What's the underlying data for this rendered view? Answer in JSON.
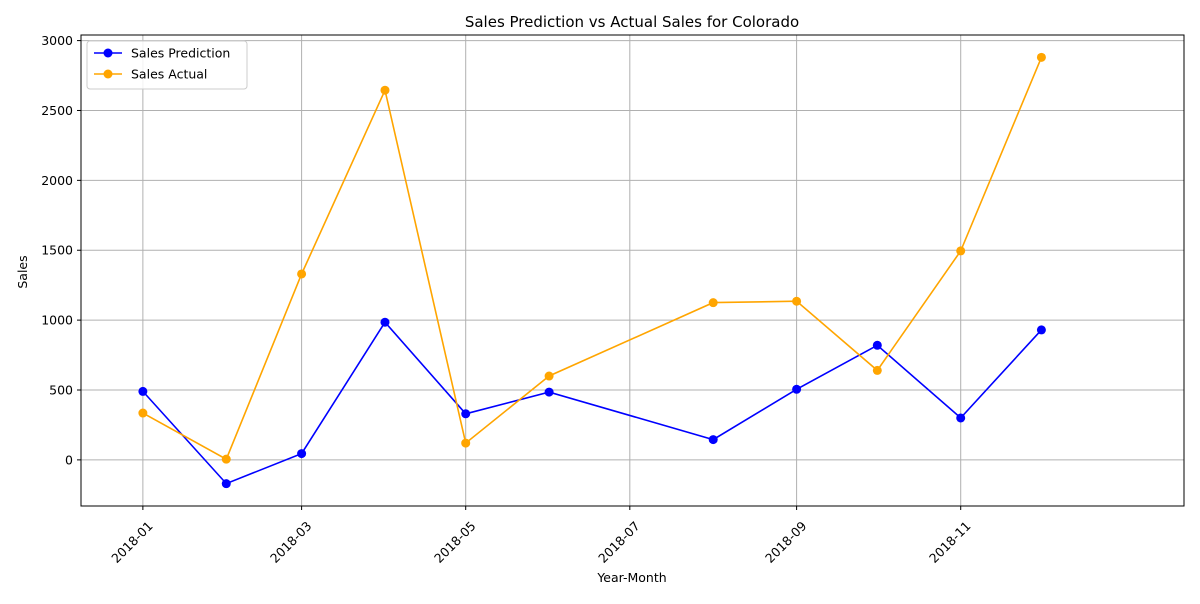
{
  "chart_data": {
    "type": "line",
    "title": "Sales Prediction vs Actual Sales for Colorado",
    "xlabel": "Year-Month",
    "ylabel": "Sales",
    "x": [
      "2018-01",
      "2018-02",
      "2018-03",
      "2018-04",
      "2018-05",
      "2018-06",
      "2018-08",
      "2018-09",
      "2018-10",
      "2018-11",
      "2018-12"
    ],
    "xticks": [
      "2018-01",
      "2018-03",
      "2018-05",
      "2018-07",
      "2018-09",
      "2018-11"
    ],
    "yticks": [
      0,
      500,
      1000,
      1500,
      2000,
      2500,
      3000
    ],
    "ylim": [
      -330,
      3040
    ],
    "grid": true,
    "legend_position": "top-left",
    "series": [
      {
        "name": "Sales Prediction",
        "color": "#0000ff",
        "values": [
          490,
          -170,
          45,
          985,
          330,
          485,
          145,
          505,
          820,
          300,
          930
        ]
      },
      {
        "name": "Sales Actual",
        "color": "#ffa500",
        "values": [
          335,
          5,
          1330,
          2645,
          120,
          600,
          1125,
          1135,
          640,
          1495,
          2880
        ]
      }
    ]
  }
}
